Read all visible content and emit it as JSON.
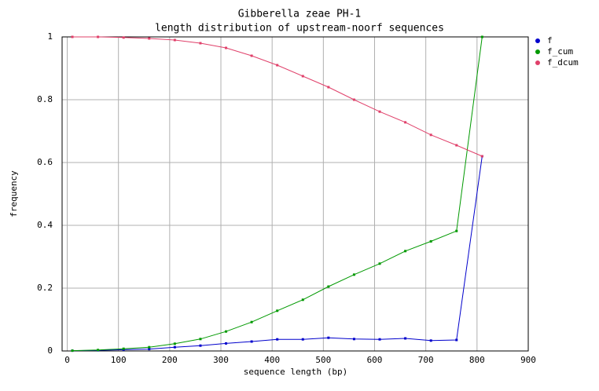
{
  "chart_data": {
    "type": "line",
    "title": "Gibberella zeae PH-1",
    "subtitle": "length distribution of upstream-noorf sequences",
    "x_label": "sequence length (bp)",
    "y_label": "frequency",
    "x": [
      10,
      60,
      110,
      160,
      210,
      260,
      310,
      360,
      410,
      460,
      510,
      560,
      610,
      660,
      710,
      760,
      810
    ],
    "series": [
      {
        "name": "f",
        "color": "#0000cc",
        "values": [
          0.001,
          0.002,
          0.004,
          0.006,
          0.012,
          0.017,
          0.024,
          0.03,
          0.037,
          0.037,
          0.042,
          0.038,
          0.037,
          0.04,
          0.033,
          0.035,
          0.62
        ]
      },
      {
        "name": "f_cum",
        "color": "#009900",
        "values": [
          0.001,
          0.003,
          0.007,
          0.012,
          0.023,
          0.038,
          0.062,
          0.092,
          0.128,
          0.163,
          0.205,
          0.243,
          0.278,
          0.318,
          0.349,
          0.382,
          1.0
        ]
      },
      {
        "name": "f_dcum",
        "color": "#e0406a",
        "values": [
          1.0,
          1.0,
          0.998,
          0.995,
          0.99,
          0.98,
          0.965,
          0.94,
          0.91,
          0.875,
          0.84,
          0.8,
          0.762,
          0.728,
          0.688,
          0.655,
          0.62
        ]
      }
    ],
    "xlim": [
      -10,
      900
    ],
    "xticks": [
      0,
      100,
      200,
      300,
      400,
      500,
      600,
      700,
      800,
      900
    ],
    "ylim": [
      0,
      1
    ],
    "yticks": [
      0,
      0.2,
      0.4,
      0.6,
      0.8,
      1
    ],
    "grid": true,
    "legend": "right"
  }
}
